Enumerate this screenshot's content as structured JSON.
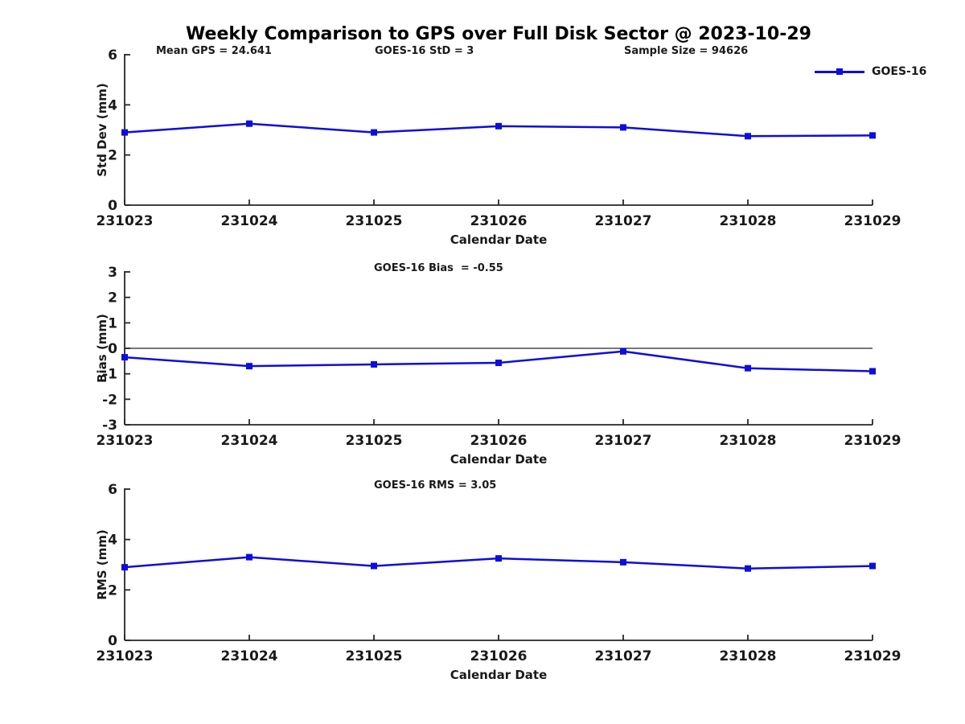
{
  "page": {
    "title": "Weekly Comparison to GPS over Full Disk Sector @ 2023-10-29"
  },
  "colors": {
    "series": "#0d0ddd",
    "axis": "#262626",
    "text": "#1a1a1a"
  },
  "legend": {
    "label": "GOES-16"
  },
  "annotations": {
    "mean_gps": "Mean GPS = 24.641",
    "std": "GOES-16 StD = 3",
    "sample_size": "Sample Size = 94626",
    "bias": "GOES-16 Bias  = -0.55",
    "rms": "GOES-16 RMS = 3.05"
  },
  "chart_data": [
    {
      "type": "line",
      "title": "",
      "xlabel": "Calendar Date",
      "ylabel": "Std Dev (mm)",
      "categories": [
        "231023",
        "231024",
        "231025",
        "231026",
        "231027",
        "231028",
        "231029"
      ],
      "series": [
        {
          "name": "GOES-16",
          "values": [
            2.9,
            3.25,
            2.9,
            3.15,
            3.1,
            2.75,
            2.78
          ]
        }
      ],
      "ylim": [
        0,
        6
      ],
      "yticks": [
        0,
        2,
        4,
        6
      ],
      "zero_line": false,
      "grid": false,
      "legend_position": "upper-right-outside",
      "marker": "square"
    },
    {
      "type": "line",
      "title": "",
      "xlabel": "Calendar Date",
      "ylabel": "Bias (mm)",
      "categories": [
        "231023",
        "231024",
        "231025",
        "231026",
        "231027",
        "231028",
        "231029"
      ],
      "series": [
        {
          "name": "GOES-16",
          "values": [
            -0.35,
            -0.7,
            -0.63,
            -0.57,
            -0.12,
            -0.78,
            -0.9
          ]
        }
      ],
      "ylim": [
        -3,
        3
      ],
      "yticks": [
        -3,
        -2,
        -1,
        0,
        1,
        2,
        3
      ],
      "zero_line": true,
      "grid": false,
      "marker": "square"
    },
    {
      "type": "line",
      "title": "",
      "xlabel": "Calendar Date",
      "ylabel": "RMS (mm)",
      "categories": [
        "231023",
        "231024",
        "231025",
        "231026",
        "231027",
        "231028",
        "231029"
      ],
      "series": [
        {
          "name": "GOES-16",
          "values": [
            2.9,
            3.3,
            2.95,
            3.25,
            3.1,
            2.85,
            2.95
          ]
        }
      ],
      "ylim": [
        0,
        6
      ],
      "yticks": [
        0,
        2,
        4,
        6
      ],
      "zero_line": false,
      "grid": false,
      "marker": "square"
    }
  ]
}
